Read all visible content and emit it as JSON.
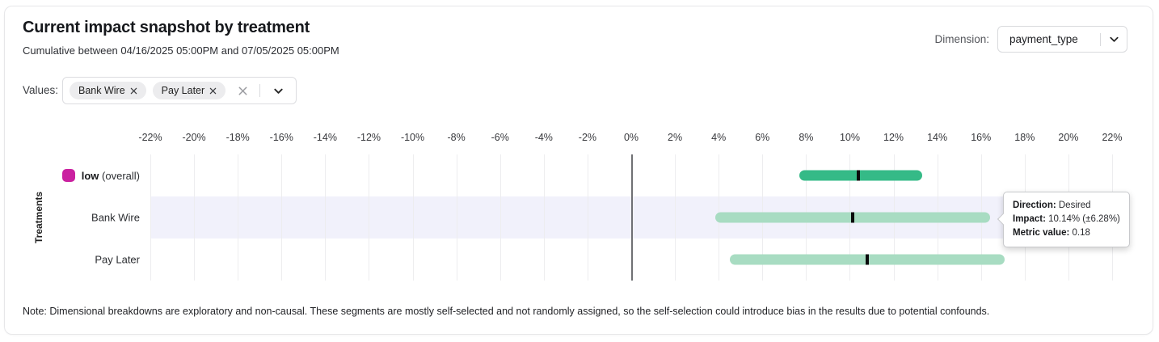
{
  "header": {
    "title": "Current impact snapshot by treatment",
    "subtitle": "Cumulative between 04/16/2025 05:00PM and 07/05/2025 05:00PM",
    "dimension_label": "Dimension:",
    "dimension_value": "payment_type"
  },
  "filters": {
    "values_label": "Values:",
    "chips": [
      {
        "label": "Bank Wire"
      },
      {
        "label": "Pay Later"
      }
    ]
  },
  "chart_data": {
    "type": "bar",
    "subtype": "horizontal-interval",
    "ylabel": "Treatments",
    "axis": {
      "min": -22,
      "max": 22,
      "step": 2,
      "unit": "%"
    },
    "grid": true,
    "rows": [
      {
        "label": "low",
        "label_suffix": "(overall)",
        "legend_color": "#ca21a0",
        "impact": 10.4,
        "ci_low": 7.7,
        "ci_high": 13.3,
        "bar_color": "#35ba87",
        "highlighted": false
      },
      {
        "label": "Bank Wire",
        "label_suffix": "",
        "legend_color": "",
        "impact": 10.14,
        "ci_low": 3.86,
        "ci_high": 16.42,
        "bar_color": "#a8dcc2",
        "highlighted": true
      },
      {
        "label": "Pay Later",
        "label_suffix": "",
        "legend_color": "",
        "impact": 10.8,
        "ci_low": 4.5,
        "ci_high": 17.1,
        "bar_color": "#a8dcc2",
        "highlighted": false
      }
    ]
  },
  "tooltip": {
    "direction_label": "Direction:",
    "direction_value": "Desired",
    "impact_label": "Impact:",
    "impact_value": "10.14% (±6.28%)",
    "metric_label": "Metric value:",
    "metric_value": "0.18"
  },
  "note": "Note: Dimensional breakdowns are exploratory and non-causal. These segments are mostly self-selected and not randomly assigned, so the self-selection could introduce bias in the results due to potential confounds."
}
